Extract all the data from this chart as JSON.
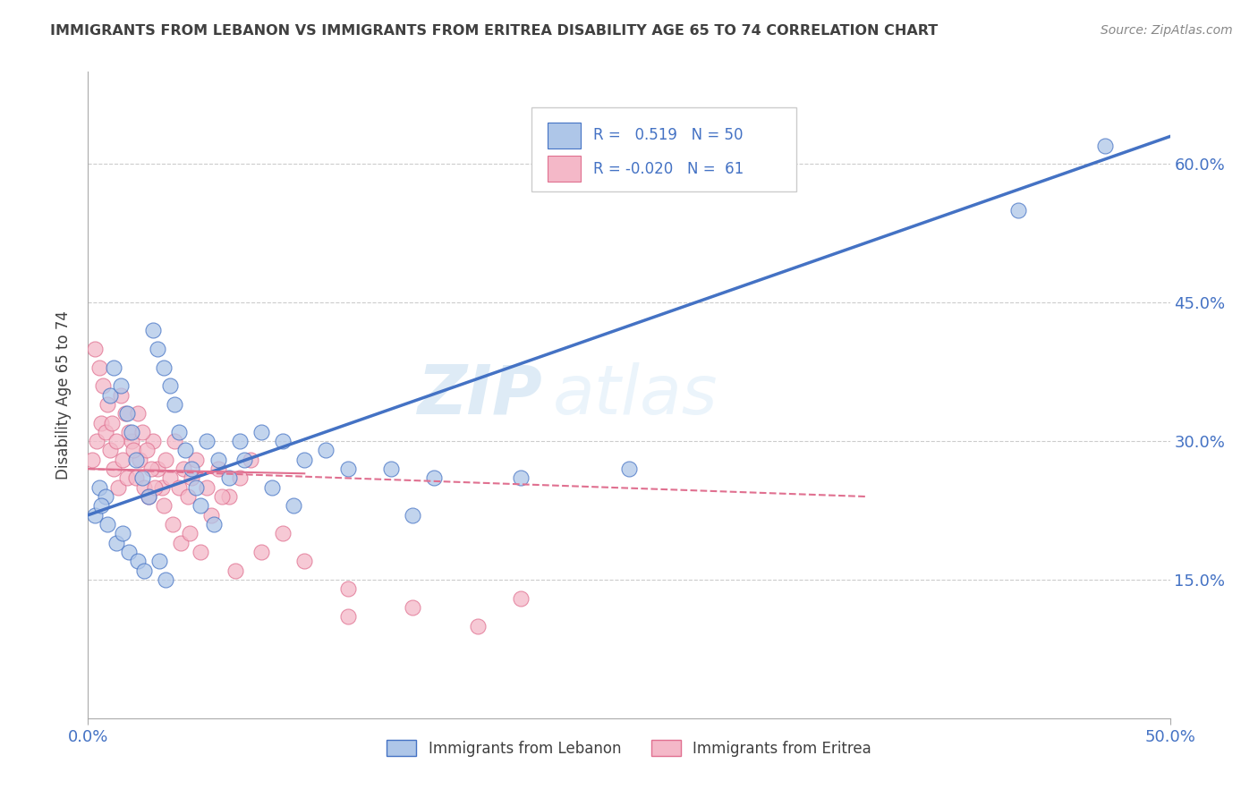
{
  "title": "IMMIGRANTS FROM LEBANON VS IMMIGRANTS FROM ERITREA DISABILITY AGE 65 TO 74 CORRELATION CHART",
  "source": "Source: ZipAtlas.com",
  "ylabel": "Disability Age 65 to 74",
  "xlim": [
    0.0,
    0.5
  ],
  "ylim": [
    0.0,
    0.7
  ],
  "xtick_labels": [
    "0.0%",
    "50.0%"
  ],
  "xtick_positions": [
    0.0,
    0.5
  ],
  "ytick_labels": [
    "15.0%",
    "30.0%",
    "45.0%",
    "60.0%"
  ],
  "ytick_positions": [
    0.15,
    0.3,
    0.45,
    0.6
  ],
  "legend_label1": "Immigrants from Lebanon",
  "legend_label2": "Immigrants from Eritrea",
  "r1": 0.519,
  "n1": 50,
  "r2": -0.02,
  "n2": 61,
  "color1": "#aec6e8",
  "color2": "#f4b8c8",
  "line_color1": "#4472c4",
  "line_color2": "#e07090",
  "watermark_zip": "ZIP",
  "watermark_atlas": "atlas",
  "background_color": "#ffffff",
  "grid_color": "#cccccc",
  "title_color": "#404040",
  "axis_color": "#4472c4",
  "lebanon_x": [
    0.005,
    0.008,
    0.01,
    0.012,
    0.015,
    0.018,
    0.02,
    0.022,
    0.025,
    0.028,
    0.03,
    0.032,
    0.035,
    0.038,
    0.04,
    0.042,
    0.045,
    0.048,
    0.05,
    0.055,
    0.06,
    0.065,
    0.07,
    0.08,
    0.09,
    0.1,
    0.11,
    0.12,
    0.14,
    0.16,
    0.003,
    0.006,
    0.009,
    0.013,
    0.016,
    0.019,
    0.023,
    0.026,
    0.033,
    0.036,
    0.052,
    0.058,
    0.072,
    0.085,
    0.095,
    0.15,
    0.2,
    0.25,
    0.43,
    0.47
  ],
  "lebanon_y": [
    0.25,
    0.24,
    0.35,
    0.38,
    0.36,
    0.33,
    0.31,
    0.28,
    0.26,
    0.24,
    0.42,
    0.4,
    0.38,
    0.36,
    0.34,
    0.31,
    0.29,
    0.27,
    0.25,
    0.3,
    0.28,
    0.26,
    0.3,
    0.31,
    0.3,
    0.28,
    0.29,
    0.27,
    0.27,
    0.26,
    0.22,
    0.23,
    0.21,
    0.19,
    0.2,
    0.18,
    0.17,
    0.16,
    0.17,
    0.15,
    0.23,
    0.21,
    0.28,
    0.25,
    0.23,
    0.22,
    0.26,
    0.27,
    0.55,
    0.62
  ],
  "eritrea_x": [
    0.002,
    0.004,
    0.006,
    0.008,
    0.01,
    0.012,
    0.014,
    0.016,
    0.018,
    0.02,
    0.022,
    0.024,
    0.026,
    0.028,
    0.03,
    0.032,
    0.034,
    0.036,
    0.038,
    0.04,
    0.042,
    0.044,
    0.046,
    0.048,
    0.05,
    0.055,
    0.06,
    0.065,
    0.07,
    0.075,
    0.003,
    0.005,
    0.007,
    0.009,
    0.011,
    0.013,
    0.015,
    0.017,
    0.019,
    0.021,
    0.023,
    0.025,
    0.027,
    0.029,
    0.031,
    0.035,
    0.039,
    0.043,
    0.047,
    0.052,
    0.057,
    0.062,
    0.068,
    0.08,
    0.09,
    0.1,
    0.12,
    0.15,
    0.18,
    0.2,
    0.12
  ],
  "eritrea_y": [
    0.28,
    0.3,
    0.32,
    0.31,
    0.29,
    0.27,
    0.25,
    0.28,
    0.26,
    0.3,
    0.26,
    0.28,
    0.25,
    0.24,
    0.3,
    0.27,
    0.25,
    0.28,
    0.26,
    0.3,
    0.25,
    0.27,
    0.24,
    0.26,
    0.28,
    0.25,
    0.27,
    0.24,
    0.26,
    0.28,
    0.4,
    0.38,
    0.36,
    0.34,
    0.32,
    0.3,
    0.35,
    0.33,
    0.31,
    0.29,
    0.33,
    0.31,
    0.29,
    0.27,
    0.25,
    0.23,
    0.21,
    0.19,
    0.2,
    0.18,
    0.22,
    0.24,
    0.16,
    0.18,
    0.2,
    0.17,
    0.14,
    0.12,
    0.1,
    0.13,
    0.11
  ]
}
